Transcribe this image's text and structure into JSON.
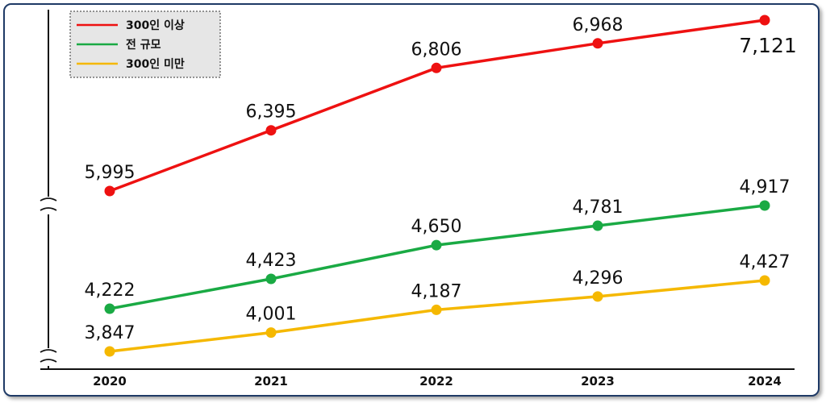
{
  "chart_data": {
    "type": "line",
    "categories": [
      "2020",
      "2021",
      "2022",
      "2023",
      "2024"
    ],
    "series": [
      {
        "name": "300인 이상",
        "color": "#ee1111",
        "values": [
          5995,
          6395,
          6806,
          6968,
          7121
        ],
        "labels": [
          "5,995",
          "6,395",
          "6,806",
          "6,968",
          "7,121"
        ]
      },
      {
        "name": "전 규모",
        "color": "#1aaa44",
        "values": [
          4222,
          4423,
          4650,
          4781,
          4917
        ],
        "labels": [
          "4,222",
          "4,423",
          "4,650",
          "4,781",
          "4,917"
        ]
      },
      {
        "name": "300인 미만",
        "color": "#f5b800",
        "values": [
          3847,
          4001,
          4187,
          4296,
          4427
        ],
        "labels": [
          "3,847",
          "4,001",
          "4,187",
          "4,296",
          "4,427"
        ]
      }
    ],
    "y_axis_break": true,
    "grid": false,
    "legend_position": "top-left"
  }
}
